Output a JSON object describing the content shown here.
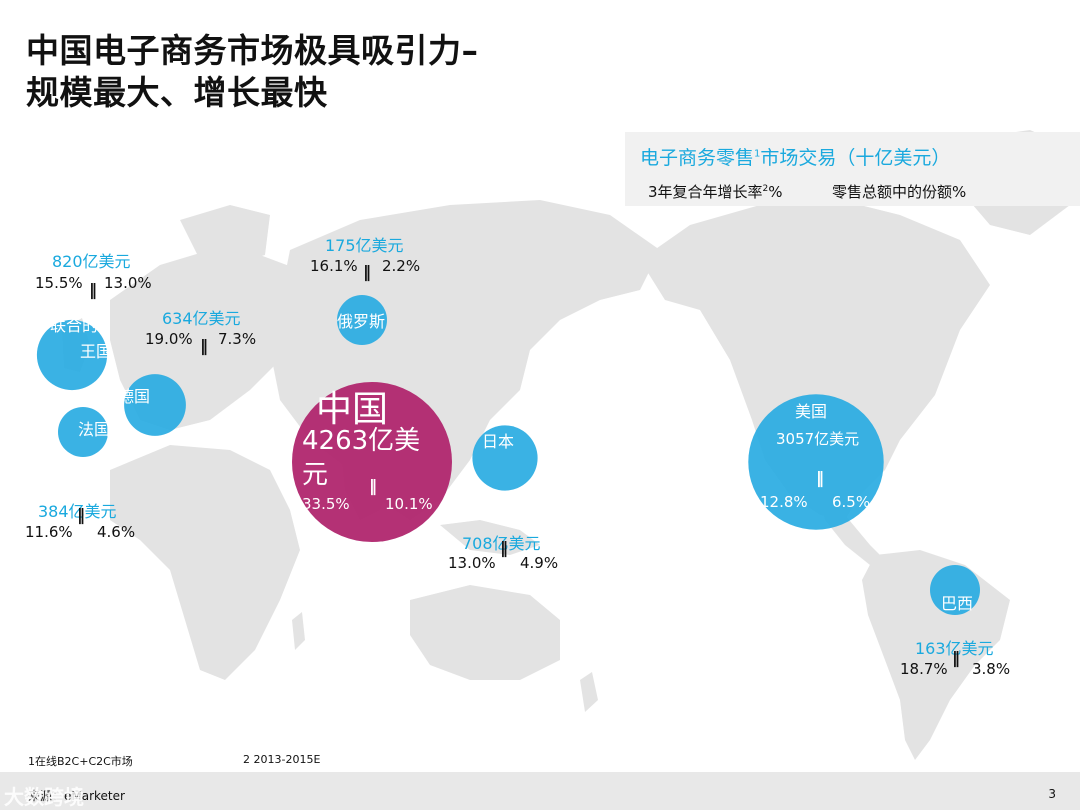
{
  "title": {
    "line1": "中国电子商务市场极具吸引力–",
    "line2": "规模最大、增长最快"
  },
  "legend": {
    "title": "电子商务零售",
    "title_sup": "1",
    "title_rest": "市场交易（十亿美元）",
    "growth_label": "3年复合年增长率",
    "growth_sup": "2",
    "growth_suffix": "%",
    "share_label": "零售总额中的份额%"
  },
  "colors": {
    "bubble": "#29abe2",
    "china": "#b0266e",
    "map": "#e3e3e3",
    "text_blue": "#1aa9de"
  },
  "chart_data": {
    "type": "bubble-map",
    "title": "电子商务零售市场交易（十亿美元）",
    "columns": [
      "3年复合年增长率%",
      "零售总额中的份额%"
    ],
    "markets": [
      {
        "name": "中国",
        "amount_label": "4263亿美元",
        "value": 426.3,
        "cagr": 33.5,
        "share": 10.1
      },
      {
        "name": "美国",
        "amount_label": "3057亿美元",
        "value": 305.7,
        "cagr": 12.8,
        "share": 6.5
      },
      {
        "name": "联合的王国",
        "amount_label": "820亿美元",
        "value": 82.0,
        "cagr": 15.5,
        "share": 13.0
      },
      {
        "name": "日本",
        "amount_label": "708亿美元",
        "value": 70.8,
        "cagr": 13.0,
        "share": 4.9
      },
      {
        "name": "德国",
        "amount_label": "634亿美元",
        "value": 63.4,
        "cagr": 19.0,
        "share": 7.3
      },
      {
        "name": "法国",
        "amount_label": "384亿美元",
        "value": 38.4,
        "cagr": 11.6,
        "share": 4.6
      },
      {
        "name": "俄罗斯",
        "amount_label": "175亿美元",
        "value": 17.5,
        "cagr": 16.1,
        "share": 2.2
      },
      {
        "name": "巴西",
        "amount_label": "163亿美元",
        "value": 16.3,
        "cagr": 18.7,
        "share": 3.8
      }
    ]
  },
  "labels": {
    "china_name": "中国",
    "china_amount": "4263亿美元",
    "china_cagr": "33.5%",
    "china_share": "10.1%",
    "us_name": "美国",
    "us_amount": "3057亿美元",
    "us_cagr": "12.8%",
    "us_share": "6.5%",
    "uk_name_1": "联合的",
    "uk_name_2": "王国",
    "uk_amount": "820亿美元",
    "uk_cagr": "15.5%",
    "uk_share": "13.0%",
    "japan_name": "日本",
    "japan_amount": "708亿美元",
    "japan_cagr": "13.0%",
    "japan_share": "4.9%",
    "germany_name": "德国",
    "germany_amount": "634亿美元",
    "germany_cagr": "19.0%",
    "germany_share": "7.3%",
    "france_name": "法国",
    "france_amount": "384亿美元",
    "france_cagr": "11.6%",
    "france_share": "4.6%",
    "russia_name": "俄罗斯",
    "russia_amount": "175亿美元",
    "russia_cagr": "16.1%",
    "russia_share": "2.2%",
    "brazil_name": "巴西",
    "brazil_amount": "163亿美元",
    "brazil_cagr": "18.7%",
    "brazil_share": "3.8%",
    "separator": "‖"
  },
  "footnotes": {
    "note1": "1在线B2C+C2C市场",
    "note2": "2 2013-2015E",
    "source": "来源：eMarketer",
    "page": "3",
    "watermark": "大数跨境"
  }
}
